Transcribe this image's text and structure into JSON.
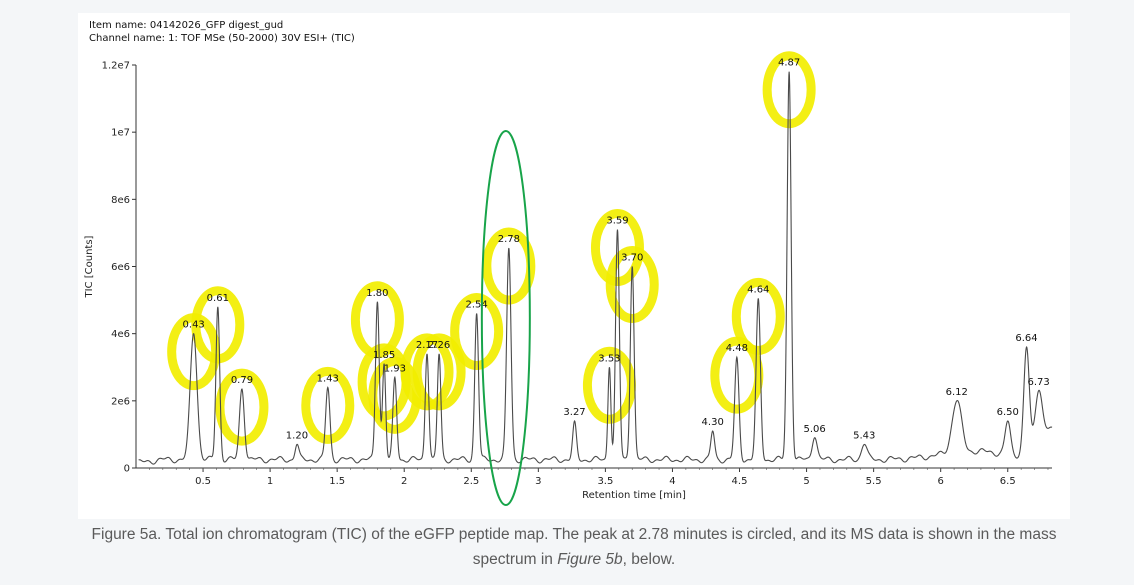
{
  "header": {
    "item_name": "Item name: 04142026_GFP digest_gud",
    "channel_name": "Channel name: 1: TOF MSe (50-2000) 30V ESI+ (TIC)"
  },
  "chart_data": {
    "type": "line",
    "xlabel": "Retention time [min]",
    "ylabel": "TIC [Counts]",
    "xlim": [
      0.0,
      6.83
    ],
    "ylim": [
      0,
      12000000
    ],
    "x_ticks": [
      {
        "value": 0.5,
        "label": "0.5"
      },
      {
        "value": 1,
        "label": "1"
      },
      {
        "value": 1.5,
        "label": "1.5"
      },
      {
        "value": 2,
        "label": "2"
      },
      {
        "value": 2.5,
        "label": "2.5"
      },
      {
        "value": 3,
        "label": "3"
      },
      {
        "value": 3.5,
        "label": "3.5"
      },
      {
        "value": 4,
        "label": "4"
      },
      {
        "value": 4.5,
        "label": "4.5"
      },
      {
        "value": 5,
        "label": "5"
      },
      {
        "value": 5.5,
        "label": "5.5"
      },
      {
        "value": 6,
        "label": "6"
      },
      {
        "value": 6.5,
        "label": "6.5"
      }
    ],
    "y_ticks": [
      {
        "value": 0,
        "label": "0"
      },
      {
        "value": 2000000,
        "label": "2e6"
      },
      {
        "value": 4000000,
        "label": "4e6"
      },
      {
        "value": 6000000,
        "label": "6e6"
      },
      {
        "value": 8000000,
        "label": "8e6"
      },
      {
        "value": 10000000,
        "label": "1e7"
      },
      {
        "value": 12000000,
        "label": "1.2e7"
      }
    ],
    "peaks": [
      {
        "label": "0.43",
        "x": 0.43,
        "y": 4000000,
        "w": 0.025,
        "highlight": true
      },
      {
        "label": "0.61",
        "x": 0.61,
        "y": 4800000,
        "w": 0.014,
        "highlight": true
      },
      {
        "label": "0.79",
        "x": 0.79,
        "y": 2350000,
        "w": 0.018,
        "highlight": true
      },
      {
        "label": "1.20",
        "x": 1.2,
        "y": 700000,
        "w": 0.014,
        "highlight": false
      },
      {
        "label": "1.43",
        "x": 1.43,
        "y": 2400000,
        "w": 0.016,
        "highlight": true
      },
      {
        "label": "1.80",
        "x": 1.8,
        "y": 4950000,
        "w": 0.014,
        "highlight": true
      },
      {
        "label": "1.85",
        "x": 1.85,
        "y": 3100000,
        "w": 0.012,
        "highlight": true
      },
      {
        "label": "1.93",
        "x": 1.93,
        "y": 2700000,
        "w": 0.014,
        "highlight": true
      },
      {
        "label": "2.17",
        "x": 2.17,
        "y": 3400000,
        "w": 0.013,
        "highlight": true
      },
      {
        "label": "2.26",
        "x": 2.26,
        "y": 3400000,
        "w": 0.013,
        "highlight": true
      },
      {
        "label": "2.54",
        "x": 2.54,
        "y": 4600000,
        "w": 0.014,
        "highlight": true
      },
      {
        "label": "2.78",
        "x": 2.78,
        "y": 6550000,
        "w": 0.016,
        "highlight": true,
        "circled": true
      },
      {
        "label": "3.27",
        "x": 3.27,
        "y": 1400000,
        "w": 0.014,
        "highlight": false
      },
      {
        "label": "3.53",
        "x": 3.53,
        "y": 3000000,
        "w": 0.011,
        "highlight": true
      },
      {
        "label": "3.59",
        "x": 3.59,
        "y": 7100000,
        "w": 0.014,
        "highlight": true
      },
      {
        "label": "3.70",
        "x": 3.7,
        "y": 6000000,
        "w": 0.014,
        "highlight": true
      },
      {
        "label": "4.30",
        "x": 4.3,
        "y": 1100000,
        "w": 0.014,
        "highlight": false
      },
      {
        "label": "4.48",
        "x": 4.48,
        "y": 3300000,
        "w": 0.016,
        "highlight": true
      },
      {
        "label": "4.64",
        "x": 4.64,
        "y": 5050000,
        "w": 0.016,
        "highlight": true
      },
      {
        "label": "4.87",
        "x": 4.87,
        "y": 11800000,
        "w": 0.015,
        "highlight": true
      },
      {
        "label": "5.06",
        "x": 5.06,
        "y": 900000,
        "w": 0.018,
        "highlight": false
      },
      {
        "label": "5.43",
        "x": 5.43,
        "y": 700000,
        "w": 0.02,
        "highlight": false
      },
      {
        "label": "6.12",
        "x": 6.12,
        "y": 2000000,
        "w": 0.035,
        "highlight": false
      },
      {
        "label": "6.50",
        "x": 6.5,
        "y": 1400000,
        "w": 0.02,
        "highlight": false
      },
      {
        "label": "6.64",
        "x": 6.64,
        "y": 3600000,
        "w": 0.02,
        "highlight": false
      },
      {
        "label": "6.73",
        "x": 6.73,
        "y": 2300000,
        "w": 0.025,
        "highlight": false
      }
    ],
    "line_color": "#4a4a4a",
    "highlight_color": "#f2ee00",
    "circle_color": "#18a44a"
  },
  "caption": {
    "text": "Figure 5a. Total ion chromatogram (TIC) of the eGFP peptide map. The peak at 2.78 minutes is circled, and its MS data is shown in the mass spectrum in ",
    "ref": "Figure 5b",
    "tail": ", below."
  }
}
